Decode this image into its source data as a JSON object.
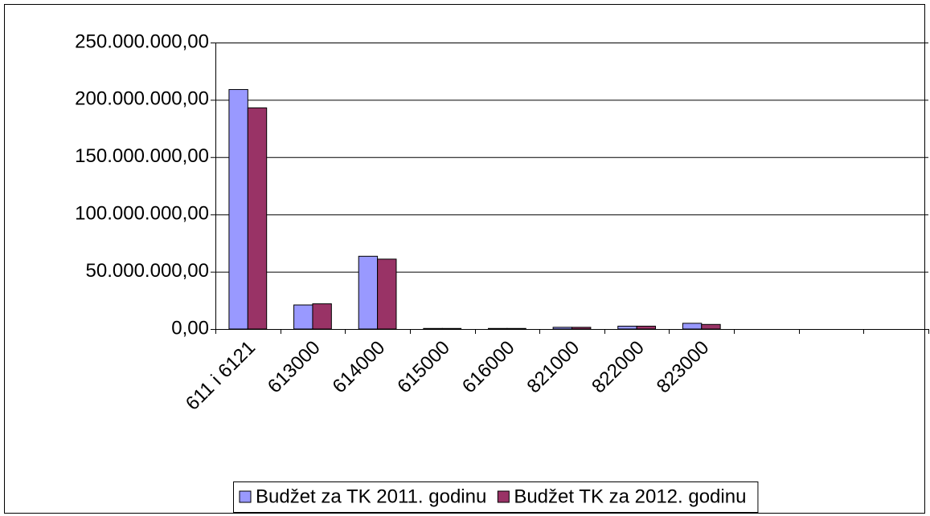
{
  "chart_data": {
    "type": "bar",
    "categories": [
      "611 i 6121",
      "613000",
      "614000",
      "615000",
      "616000",
      "821000",
      "822000",
      "823000",
      null,
      null,
      null
    ],
    "series": [
      {
        "name": "Budžet za TK 2011. godinu",
        "color": "#9999ff",
        "values": [
          209000000,
          21000000,
          63500000,
          500000,
          500000,
          1500000,
          2500000,
          5000000,
          null,
          null,
          null
        ]
      },
      {
        "name": "Budžet TK za 2012. godinu",
        "color": "#993366",
        "values": [
          193000000,
          22000000,
          61000000,
          500000,
          500000,
          1500000,
          2500000,
          4000000,
          null,
          null,
          null
        ]
      }
    ],
    "ylim": [
      0,
      250000000
    ],
    "yticks": [
      {
        "value": 0,
        "label": "0,00"
      },
      {
        "value": 50000000,
        "label": "50.000.000,00"
      },
      {
        "value": 100000000,
        "label": "100.000.000,00"
      },
      {
        "value": 150000000,
        "label": "150.000.000,00"
      },
      {
        "value": 200000000,
        "label": "200.000.000,00"
      },
      {
        "value": 250000000,
        "label": "250.000.000,00"
      }
    ],
    "grid": true,
    "legend": "bottom-right"
  }
}
